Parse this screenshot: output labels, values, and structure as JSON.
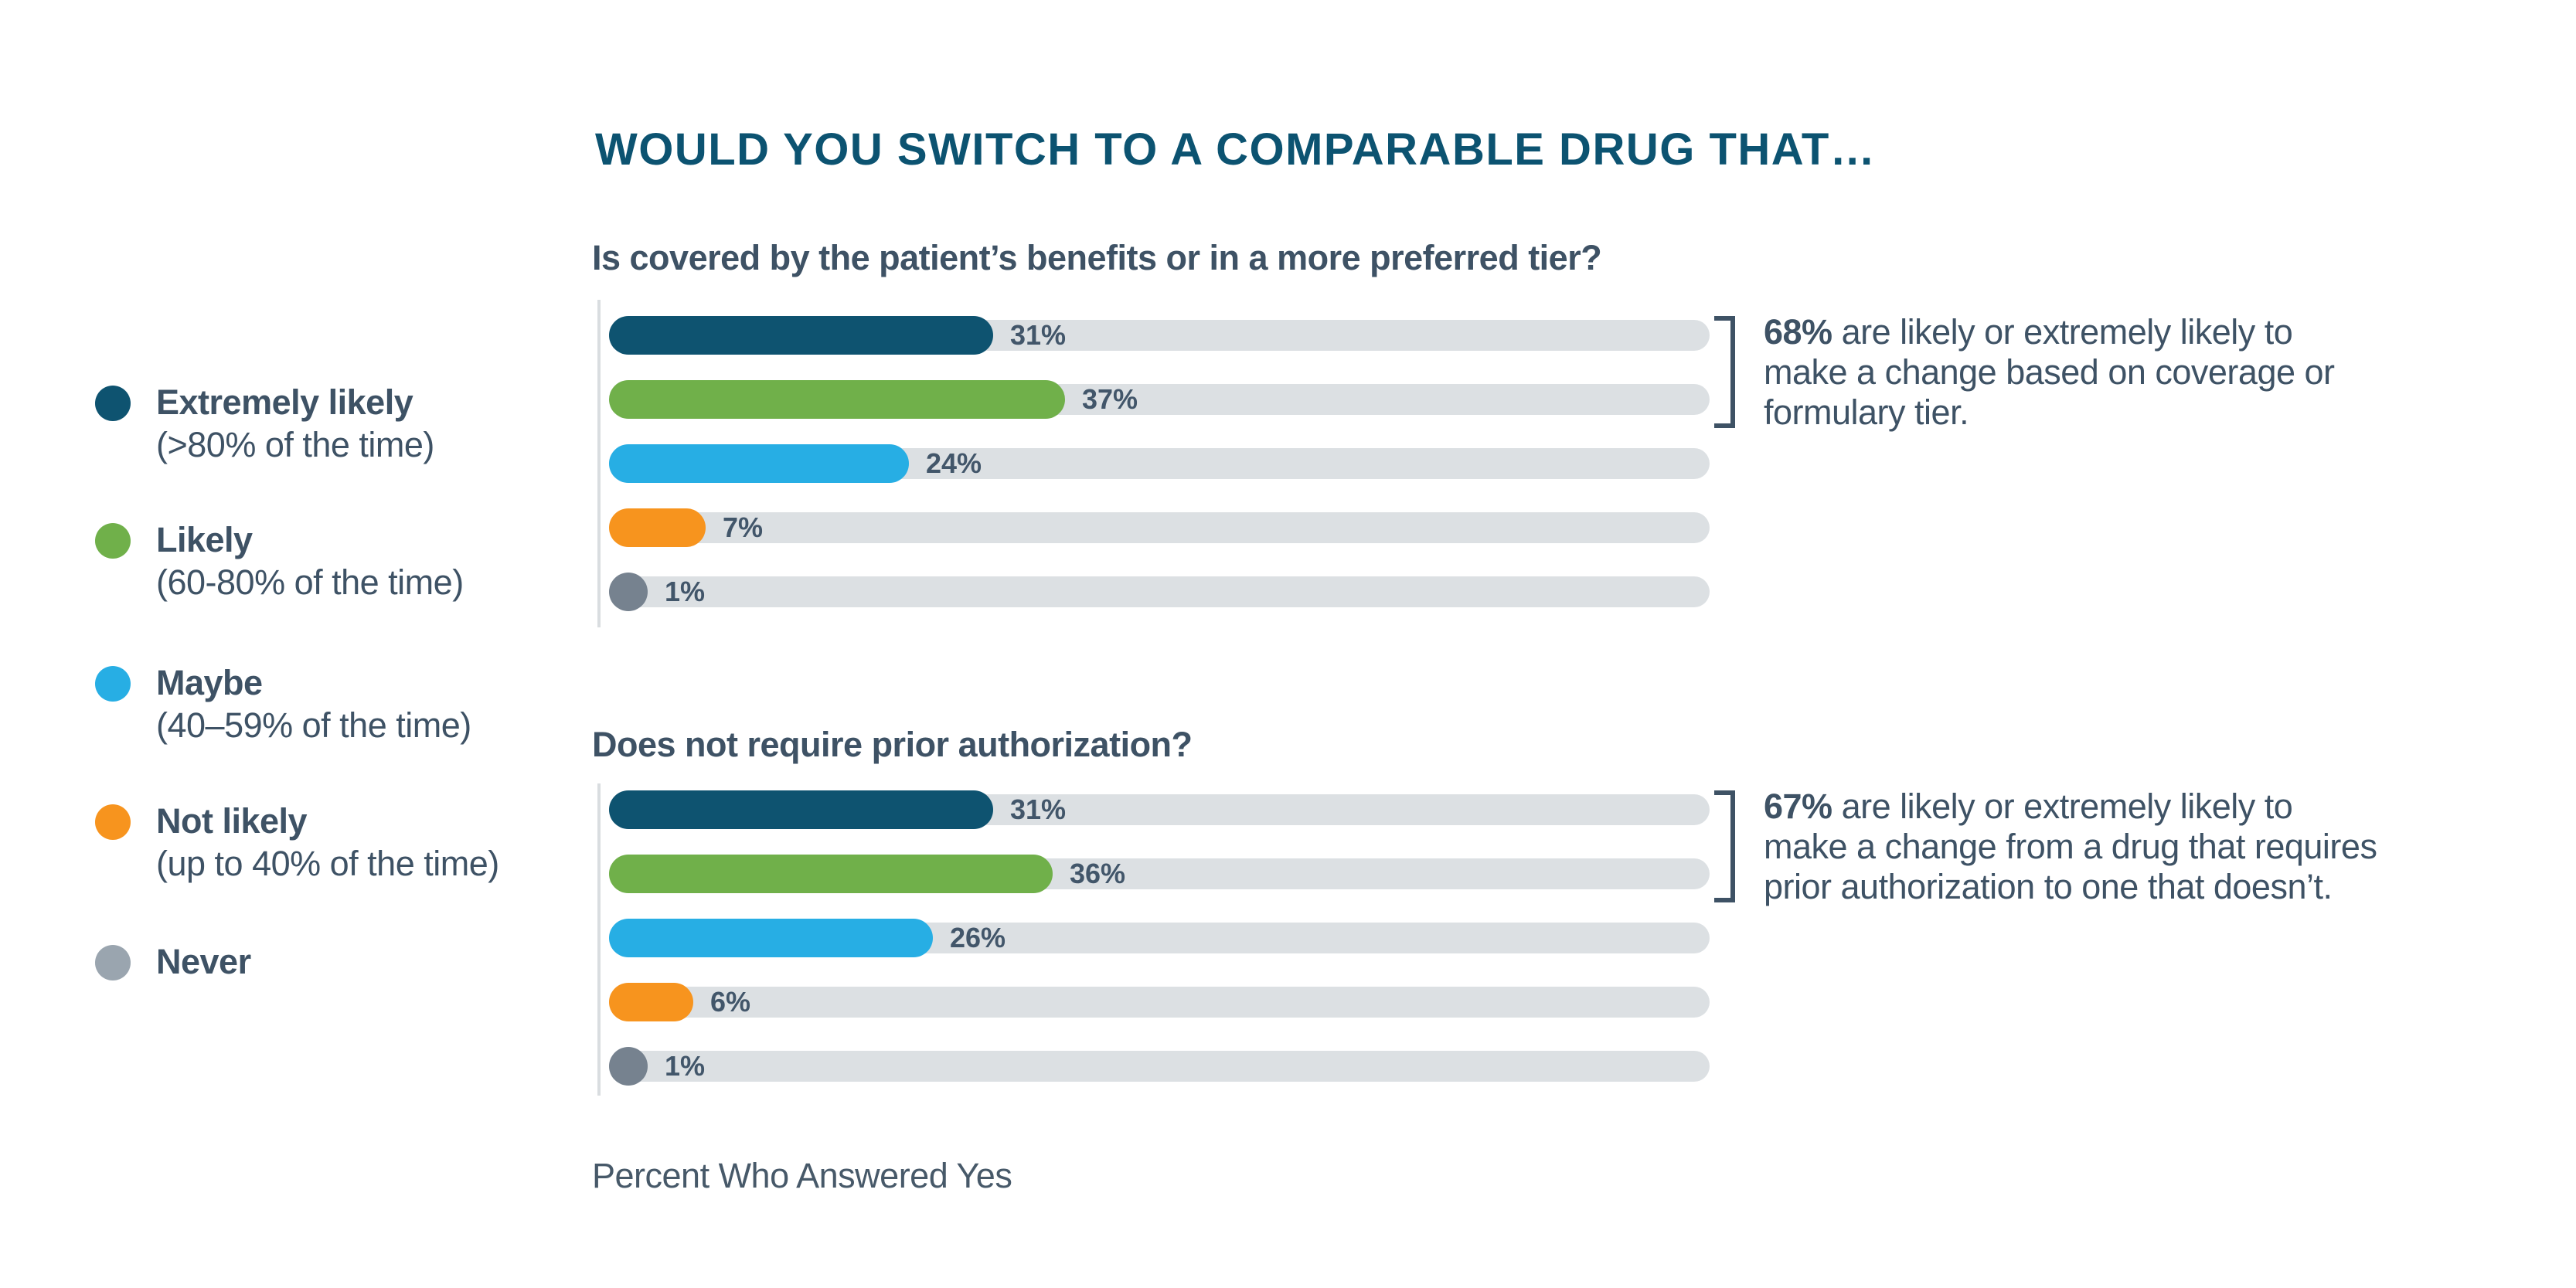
{
  "title": "WOULD YOU SWITCH TO A COMPARABLE DRUG THAT…",
  "colors": {
    "title": "#0c5371",
    "text": "#3e5265",
    "track": "#dce0e3",
    "axis": "#d9dde0",
    "bracket": "#3e5265"
  },
  "legend": {
    "items": [
      {
        "label": "Extremely likely",
        "sublabel": "(>80% of the time)",
        "color": "#0e5370"
      },
      {
        "label": "Likely",
        "sublabel": "(60-80% of the time)",
        "color": "#70b04a"
      },
      {
        "label": "Maybe",
        "sublabel": "(40–59% of the time)",
        "color": "#27aee4"
      },
      {
        "label": "Not likely",
        "sublabel": "(up to 40% of the time)",
        "color": "#f7941e"
      },
      {
        "label": "Never",
        "sublabel": "",
        "color": "#9aa5af"
      }
    ]
  },
  "chart_data": [
    {
      "type": "bar",
      "title": "Is covered by the patient’s benefits or in a more preferred tier?",
      "categories": [
        "Extremely likely",
        "Likely",
        "Maybe",
        "Not likely",
        "Never"
      ],
      "values": [
        31,
        37,
        24,
        7,
        1
      ],
      "value_labels": [
        "31%",
        "37%",
        "24%",
        "7%",
        "1%"
      ],
      "bar_colors": [
        "#0e5370",
        "#70b04a",
        "#27aee4",
        "#f7941e",
        "#76828f"
      ],
      "xlabel": "Percent Who Answered Yes",
      "xlim": [
        0,
        100
      ],
      "annotation": {
        "lead": "68%",
        "lines": [
          "are likely or extremely likely to",
          "make a change based on coverage or",
          "formulary tier."
        ]
      }
    },
    {
      "type": "bar",
      "title": "Does not require prior authorization?",
      "categories": [
        "Extremely likely",
        "Likely",
        "Maybe",
        "Not likely",
        "Never"
      ],
      "values": [
        31,
        36,
        26,
        6,
        1
      ],
      "value_labels": [
        "31%",
        "36%",
        "26%",
        "6%",
        "1%"
      ],
      "bar_colors": [
        "#0e5370",
        "#70b04a",
        "#27aee4",
        "#f7941e",
        "#76828f"
      ],
      "xlabel": "Percent Who Answered Yes",
      "xlim": [
        0,
        100
      ],
      "annotation": {
        "lead": "67%",
        "lines": [
          "are likely or extremely likely to",
          "make a change from a drug that requires",
          "prior authorization to one that doesn’t."
        ]
      }
    }
  ],
  "footer": "Percent Who Answered Yes"
}
